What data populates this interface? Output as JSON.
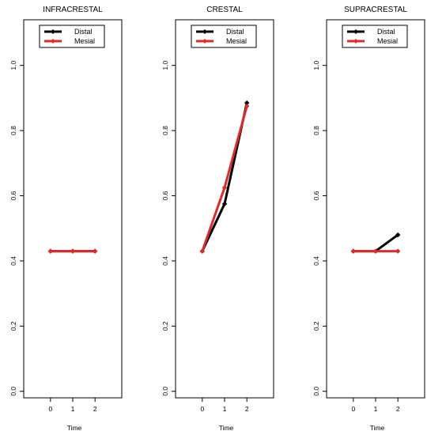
{
  "chart_data": [
    {
      "type": "line",
      "title": "INFRACRESTAL",
      "xlabel": "Time",
      "ylabel": "",
      "x": [
        0,
        1,
        2
      ],
      "xlim": [
        -1.2,
        3.2
      ],
      "ylim": [
        -0.02,
        1.14
      ],
      "xticks": [
        "0",
        "1",
        "2"
      ],
      "yticks": [
        "0.0",
        "0.2",
        "0.4",
        "0.6",
        "0.8",
        "1.0"
      ],
      "legend_position": "top-center",
      "series": [
        {
          "name": "Distal",
          "color": "#000000",
          "values": [
            0.43,
            0.43,
            0.43
          ]
        },
        {
          "name": "Mesial",
          "color": "#df2a2a",
          "values": [
            0.43,
            0.43,
            0.43
          ]
        }
      ]
    },
    {
      "type": "line",
      "title": "CRESTAL",
      "xlabel": "Time",
      "ylabel": "",
      "x": [
        0,
        1,
        2
      ],
      "xlim": [
        -1.2,
        3.2
      ],
      "ylim": [
        -0.02,
        1.14
      ],
      "xticks": [
        "0",
        "1",
        "2"
      ],
      "yticks": [
        "0.0",
        "0.2",
        "0.4",
        "0.6",
        "0.8",
        "1.0"
      ],
      "legend_position": "top-center",
      "series": [
        {
          "name": "Distal",
          "color": "#000000",
          "values": [
            0.43,
            0.575,
            0.885
          ]
        },
        {
          "name": "Mesial",
          "color": "#df2a2a",
          "values": [
            0.43,
            0.625,
            0.875
          ]
        }
      ]
    },
    {
      "type": "line",
      "title": "SUPRACRESTAL",
      "xlabel": "Time",
      "ylabel": "",
      "x": [
        0,
        1,
        2
      ],
      "xlim": [
        -1.2,
        3.2
      ],
      "ylim": [
        -0.02,
        1.14
      ],
      "xticks": [
        "0",
        "1",
        "2"
      ],
      "yticks": [
        "0.0",
        "0.2",
        "0.4",
        "0.6",
        "0.8",
        "1.0"
      ],
      "legend_position": "top-center",
      "series": [
        {
          "name": "Distal",
          "color": "#000000",
          "values": [
            0.43,
            0.43,
            0.48
          ]
        },
        {
          "name": "Mesial",
          "color": "#df2a2a",
          "values": [
            0.43,
            0.43,
            0.43
          ]
        }
      ]
    }
  ]
}
